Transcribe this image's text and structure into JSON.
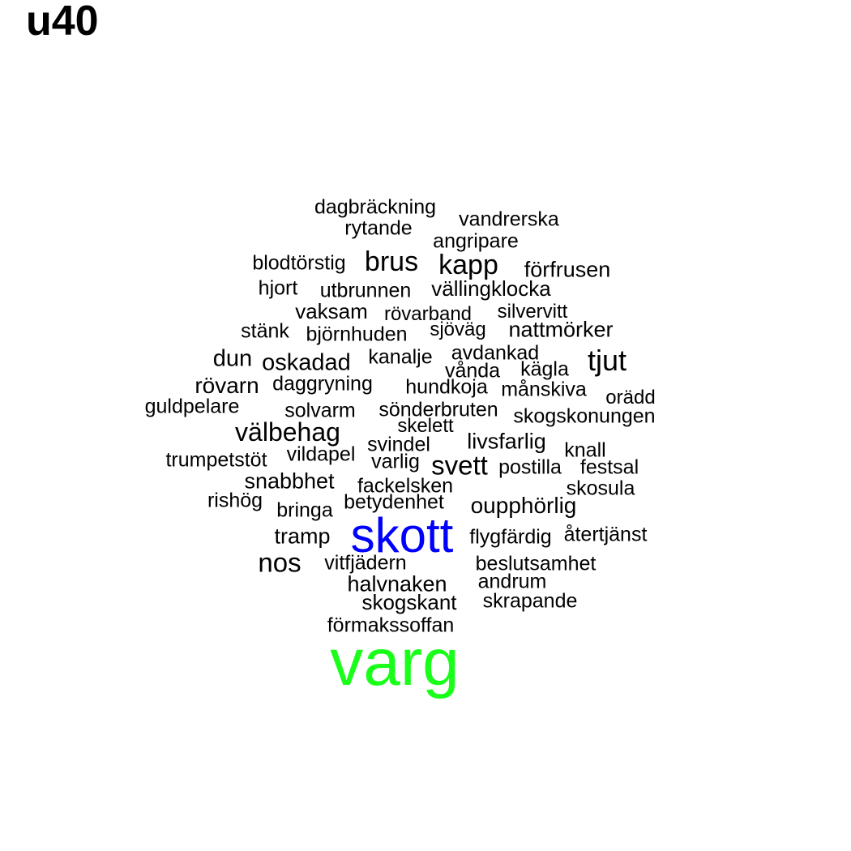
{
  "title": "u40",
  "colors": {
    "text": "#000000",
    "highlight_1": "#0000ff",
    "highlight_2": "#1aff1a"
  },
  "words": [
    {
      "text": "dagbräckning"
    },
    {
      "text": "vandrerska"
    },
    {
      "text": "rytande"
    },
    {
      "text": "angripare"
    },
    {
      "text": "blodtörstig"
    },
    {
      "text": "brus"
    },
    {
      "text": "kapp"
    },
    {
      "text": "förfrusen"
    },
    {
      "text": "hjort"
    },
    {
      "text": "utbrunnen"
    },
    {
      "text": "vällingklocka"
    },
    {
      "text": "vaksam"
    },
    {
      "text": "rövarband"
    },
    {
      "text": "silvervitt"
    },
    {
      "text": "stänk"
    },
    {
      "text": "björnhuden"
    },
    {
      "text": "sjöväg"
    },
    {
      "text": "nattmörker"
    },
    {
      "text": "dun"
    },
    {
      "text": "oskadad"
    },
    {
      "text": "kanalje"
    },
    {
      "text": "avdankad"
    },
    {
      "text": "tjut"
    },
    {
      "text": "vånda"
    },
    {
      "text": "kägla"
    },
    {
      "text": "rövarn"
    },
    {
      "text": "daggryning"
    },
    {
      "text": "hundkoja"
    },
    {
      "text": "månskiva"
    },
    {
      "text": "orädd"
    },
    {
      "text": "guldpelare"
    },
    {
      "text": "solvarm"
    },
    {
      "text": "sönderbruten"
    },
    {
      "text": "skogskonungen"
    },
    {
      "text": "välbehag"
    },
    {
      "text": "skelett"
    },
    {
      "text": "svindel"
    },
    {
      "text": "livsfarlig"
    },
    {
      "text": "knall"
    },
    {
      "text": "trumpetstöt"
    },
    {
      "text": "vildapel"
    },
    {
      "text": "varlig"
    },
    {
      "text": "svett"
    },
    {
      "text": "postilla"
    },
    {
      "text": "festsal"
    },
    {
      "text": "snabbhet"
    },
    {
      "text": "fackelsken"
    },
    {
      "text": "skosula"
    },
    {
      "text": "rishög"
    },
    {
      "text": "bringa"
    },
    {
      "text": "betydenhet"
    },
    {
      "text": "oupphörlig"
    },
    {
      "text": "tramp"
    },
    {
      "text": "skott"
    },
    {
      "text": "flygfärdig"
    },
    {
      "text": "återtjänst"
    },
    {
      "text": "nos"
    },
    {
      "text": "vitfjädern"
    },
    {
      "text": "beslutsamhet"
    },
    {
      "text": "halvnaken"
    },
    {
      "text": "andrum"
    },
    {
      "text": "skogskant"
    },
    {
      "text": "skrapande"
    },
    {
      "text": "förmakssoffan"
    },
    {
      "text": "varg"
    }
  ]
}
